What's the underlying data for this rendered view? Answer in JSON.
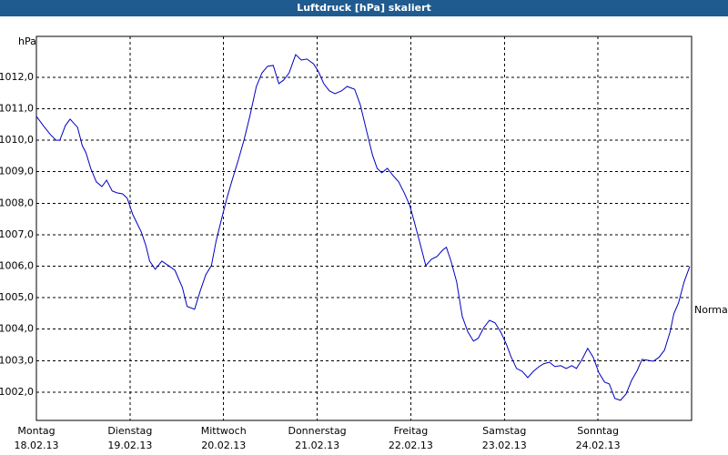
{
  "chart_data": {
    "type": "line",
    "title": "Luftdruck [hPa] skaliert",
    "y_label": "hPa",
    "xlim": [
      0,
      7
    ],
    "xticks": [
      {
        "value": 0,
        "label": "Montag",
        "date": "18.02.13"
      },
      {
        "value": 1,
        "label": "Dienstag",
        "date": "19.02.13"
      },
      {
        "value": 2,
        "label": "Mittwoch",
        "date": "20.02.13"
      },
      {
        "value": 3,
        "label": "Donnerstag",
        "date": "21.02.13"
      },
      {
        "value": 4,
        "label": "Freitag",
        "date": "22.02.13"
      },
      {
        "value": 5,
        "label": "Samstag",
        "date": "23.02.13"
      },
      {
        "value": 6,
        "label": "Sonntag",
        "date": "24.02.13"
      }
    ],
    "ylim": [
      1001.1,
      1013.3
    ],
    "yticks": [
      {
        "value": 1002,
        "label": "1002,0"
      },
      {
        "value": 1003,
        "label": "1003,0"
      },
      {
        "value": 1004,
        "label": "1004,0"
      },
      {
        "value": 1005,
        "label": "1005,0"
      },
      {
        "value": 1006,
        "label": "1006,0"
      },
      {
        "value": 1007,
        "label": "1007,0"
      },
      {
        "value": 1008,
        "label": "1008,0"
      },
      {
        "value": 1009,
        "label": "1009,0"
      },
      {
        "value": 1010,
        "label": "1010,0"
      },
      {
        "value": 1011,
        "label": "1011,0"
      },
      {
        "value": 1012,
        "label": "1012,0"
      }
    ],
    "grid": true,
    "annotations": [
      {
        "text": "Normal",
        "y": 1004.6
      }
    ],
    "series": [
      {
        "color": "#0000c0",
        "x": [
          0,
          0.08,
          0.15,
          0.21,
          0.25,
          0.31,
          0.36,
          0.44,
          0.49,
          0.53,
          0.58,
          0.64,
          0.7,
          0.75,
          0.81,
          0.86,
          0.92,
          0.97,
          1.03,
          1.12,
          1.17,
          1.21,
          1.27,
          1.34,
          1.41,
          1.48,
          1.56,
          1.61,
          1.69,
          1.75,
          1.81,
          1.87,
          1.92,
          1.98,
          2.04,
          2.1,
          2.16,
          2.22,
          2.28,
          2.35,
          2.41,
          2.47,
          2.53,
          2.59,
          2.64,
          2.7,
          2.77,
          2.83,
          2.89,
          2.96,
          3.01,
          3.07,
          3.13,
          3.19,
          3.26,
          3.32,
          3.4,
          3.46,
          3.53,
          3.59,
          3.64,
          3.69,
          3.75,
          3.81,
          3.87,
          3.93,
          3.99,
          4.04,
          4.1,
          4.16,
          4.22,
          4.28,
          4.34,
          4.38,
          4.43,
          4.49,
          4.55,
          4.61,
          4.67,
          4.72,
          4.78,
          4.84,
          4.9,
          4.96,
          5.02,
          5.07,
          5.13,
          5.19,
          5.25,
          5.31,
          5.37,
          5.42,
          5.48,
          5.54,
          5.6,
          5.66,
          5.72,
          5.77,
          5.83,
          5.89,
          5.95,
          6.01,
          6.07,
          6.12,
          6.18,
          6.24,
          6.3,
          6.36,
          6.42,
          6.47,
          6.53,
          6.59,
          6.65,
          6.71,
          6.77,
          6.81,
          6.86,
          6.92,
          6.98
        ],
        "values": [
          1010.76,
          1010.44,
          1010.18,
          1010.0,
          1010.0,
          1010.47,
          1010.67,
          1010.41,
          1009.83,
          1009.6,
          1009.11,
          1008.68,
          1008.53,
          1008.73,
          1008.39,
          1008.33,
          1008.3,
          1008.16,
          1007.64,
          1007.09,
          1006.65,
          1006.16,
          1005.9,
          1006.16,
          1006.02,
          1005.87,
          1005.32,
          1004.72,
          1004.63,
          1005.21,
          1005.73,
          1006.02,
          1006.8,
          1007.52,
          1008.21,
          1008.82,
          1009.4,
          1010.03,
          1010.76,
          1011.71,
          1012.14,
          1012.35,
          1012.38,
          1011.8,
          1011.91,
          1012.14,
          1012.72,
          1012.55,
          1012.58,
          1012.43,
          1012.2,
          1011.8,
          1011.57,
          1011.48,
          1011.57,
          1011.71,
          1011.62,
          1011.13,
          1010.27,
          1009.54,
          1009.11,
          1008.97,
          1009.11,
          1008.88,
          1008.68,
          1008.33,
          1007.92,
          1007.38,
          1006.71,
          1006.02,
          1006.22,
          1006.31,
          1006.51,
          1006.6,
          1006.16,
          1005.5,
          1004.4,
          1003.91,
          1003.62,
          1003.71,
          1004.05,
          1004.28,
          1004.2,
          1003.91,
          1003.53,
          1003.13,
          1002.75,
          1002.66,
          1002.46,
          1002.66,
          1002.81,
          1002.9,
          1002.95,
          1002.81,
          1002.84,
          1002.75,
          1002.84,
          1002.75,
          1003.04,
          1003.39,
          1003.1,
          1002.61,
          1002.32,
          1002.26,
          1001.8,
          1001.74,
          1001.94,
          1002.38,
          1002.69,
          1003.04,
          1003.01,
          1002.98,
          1003.1,
          1003.33,
          1003.91,
          1004.49,
          1004.83,
          1005.5,
          1005.99
        ]
      }
    ]
  }
}
